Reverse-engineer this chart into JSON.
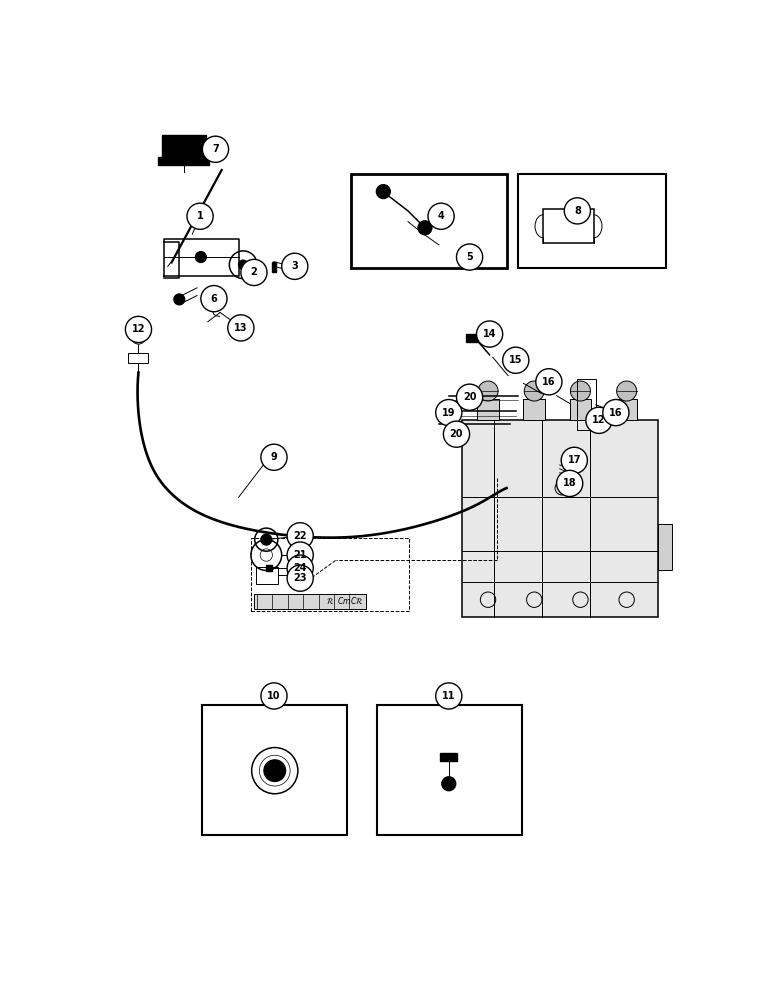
{
  "bg_color": "#ffffff",
  "line_color": "#000000",
  "fig_width": 7.72,
  "fig_height": 10.0
}
